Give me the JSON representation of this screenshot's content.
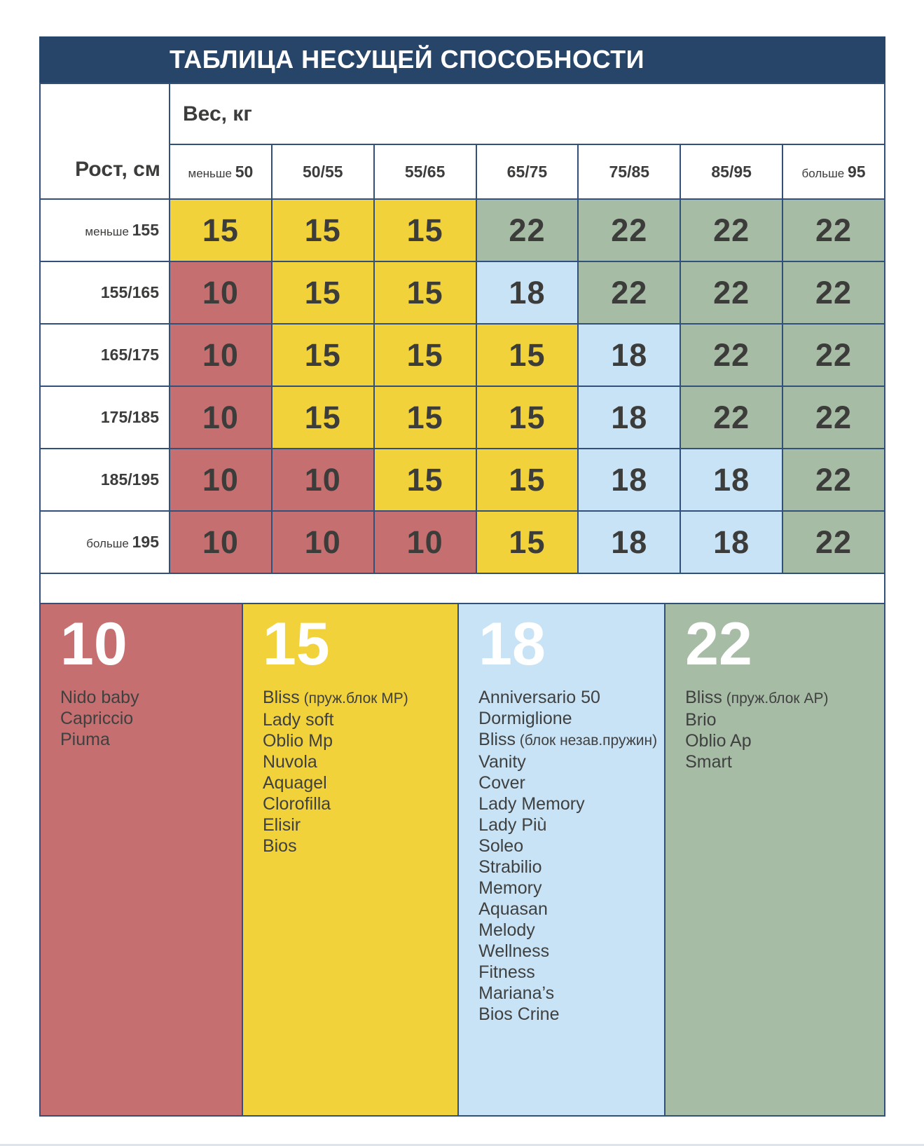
{
  "title": "ТАБЛИЦА НЕСУЩЕЙ СПОСОБНОСТИ",
  "table": {
    "weight_axis_label": "Вес, кг",
    "height_axis_label": "Рост, см",
    "columns": [
      {
        "prefix": "меньше",
        "label": "50"
      },
      {
        "prefix": "",
        "label": "50/55"
      },
      {
        "prefix": "",
        "label": "55/65"
      },
      {
        "prefix": "",
        "label": "65/75"
      },
      {
        "prefix": "",
        "label": "75/85"
      },
      {
        "prefix": "",
        "label": "85/95"
      },
      {
        "prefix": "больше",
        "label": "95"
      }
    ],
    "rows": [
      {
        "prefix": "меньше",
        "label": "155"
      },
      {
        "prefix": "",
        "label": "155/165"
      },
      {
        "prefix": "",
        "label": "165/175"
      },
      {
        "prefix": "",
        "label": "175/185"
      },
      {
        "prefix": "",
        "label": "185/195"
      },
      {
        "prefix": "больше",
        "label": "195"
      }
    ]
  },
  "chart_data": {
    "type": "heatmap",
    "title": "ТАБЛИЦА НЕСУЩЕЙ СПОСОБНОСТИ",
    "xlabel": "Вес, кг",
    "ylabel": "Рост, см",
    "x_categories": [
      "меньше 50",
      "50/55",
      "55/65",
      "65/75",
      "75/85",
      "85/95",
      "больше 95"
    ],
    "y_categories": [
      "меньше 155",
      "155/165",
      "165/175",
      "175/185",
      "185/195",
      "больше 195"
    ],
    "values": [
      [
        15,
        15,
        15,
        22,
        22,
        22,
        22
      ],
      [
        10,
        15,
        15,
        18,
        22,
        22,
        22
      ],
      [
        10,
        15,
        15,
        15,
        18,
        22,
        22
      ],
      [
        10,
        15,
        15,
        15,
        18,
        22,
        22
      ],
      [
        10,
        10,
        15,
        15,
        18,
        18,
        22
      ],
      [
        10,
        10,
        10,
        15,
        18,
        18,
        22
      ]
    ],
    "value_colors": {
      "10": "#C66F70",
      "15": "#F2D23A",
      "18": "#C9E3F6",
      "22": "#A7BCA5"
    },
    "legend_position": "bottom"
  },
  "legend": [
    {
      "value": "10",
      "color_key": "red",
      "items": [
        {
          "name": "Nido baby"
        },
        {
          "name": "Capriccio"
        },
        {
          "name": "Piuma"
        }
      ]
    },
    {
      "value": "15",
      "color_key": "yellow",
      "items": [
        {
          "name": "Bliss",
          "note": "(пруж.блок МР)"
        },
        {
          "name": "Lady soft"
        },
        {
          "name": "Oblio Mp"
        },
        {
          "name": "Nuvola"
        },
        {
          "name": "Aquagel"
        },
        {
          "name": "Clorofilla"
        },
        {
          "name": "Elisir"
        },
        {
          "name": "Bios"
        }
      ]
    },
    {
      "value": "18",
      "color_key": "blue",
      "items": [
        {
          "name": "Anniversario 50"
        },
        {
          "name": "Dormiglione"
        },
        {
          "name": "Bliss",
          "note": "(блок незав.пружин)"
        },
        {
          "name": "Vanity"
        },
        {
          "name": "Cover"
        },
        {
          "name": "Lady Memory"
        },
        {
          "name": "Lady Più"
        },
        {
          "name": "Soleo"
        },
        {
          "name": "Strabilio"
        },
        {
          "name": "Memory"
        },
        {
          "name": "Aquasan"
        },
        {
          "name": "Melody"
        },
        {
          "name": "Wellness"
        },
        {
          "name": "Fitness"
        },
        {
          "name": "Mariana’s"
        },
        {
          "name": "Bios Crine"
        }
      ]
    },
    {
      "value": "22",
      "color_key": "green",
      "items": [
        {
          "name": "Bliss",
          "note": "(пруж.блок АР)"
        },
        {
          "name": "Brio"
        },
        {
          "name": "Oblio Ap"
        },
        {
          "name": "Smart"
        }
      ]
    }
  ],
  "colors": {
    "navy": "#264569",
    "red": "#C66F70",
    "yellow": "#F2D23A",
    "blue": "#C9E3F6",
    "green": "#A7BCA5",
    "border": "#31507A",
    "value_text": "#3C3C3B"
  }
}
